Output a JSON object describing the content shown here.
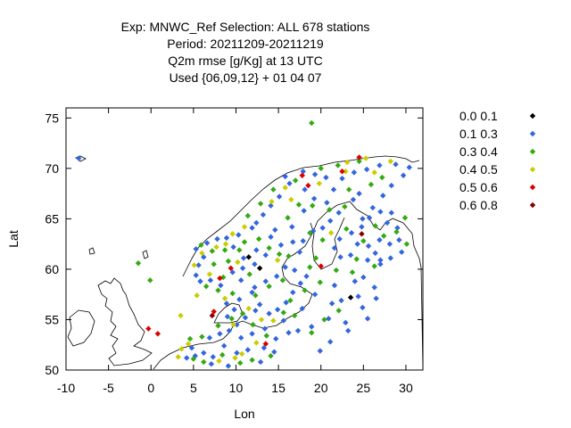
{
  "chart_data": {
    "type": "scatter",
    "title_lines": [
      "Exp: MNWC_Ref   Selection: ALL    678 stations",
      "Period: 20211209-20211219",
      "Q2m rmse [g/Kg] at  13 UTC",
      "Used {06,09,12} + 01 04 07"
    ],
    "xlabel": "Lon",
    "ylabel": "Lat",
    "xlim": [
      -10,
      32
    ],
    "ylim": [
      50,
      76
    ],
    "xticks": [
      -10,
      -5,
      0,
      5,
      10,
      15,
      20,
      25,
      30
    ],
    "yticks": [
      50,
      55,
      60,
      65,
      70,
      75
    ],
    "grid": false,
    "legend_position": "right",
    "series": [
      {
        "name": "0.0 0.1",
        "color": "#000000",
        "points": [
          [
            11.5,
            61.2
          ],
          [
            12.8,
            60.1
          ],
          [
            23.5,
            57.2
          ]
        ]
      },
      {
        "name": "0.1 0.3",
        "color": "#3366dd",
        "points": [
          [
            -8.5,
            71.0
          ],
          [
            24.0,
            58.8
          ],
          [
            27.0,
            60.5
          ],
          [
            25.5,
            60.9
          ],
          [
            25.0,
            59.2
          ],
          [
            26.3,
            58.2
          ],
          [
            24.4,
            57.3
          ],
          [
            22.4,
            56.9
          ],
          [
            21.3,
            56.6
          ],
          [
            22.9,
            54.7
          ],
          [
            20.9,
            55.1
          ],
          [
            18.9,
            54.3
          ],
          [
            17.3,
            53.9
          ],
          [
            16.2,
            53.7
          ],
          [
            14.7,
            53.1
          ],
          [
            13.3,
            52.2
          ],
          [
            11.4,
            52.0
          ],
          [
            12.9,
            50.8
          ],
          [
            10.1,
            51.7
          ],
          [
            8.6,
            52.4
          ],
          [
            7.3,
            51.3
          ],
          [
            6.2,
            51.7
          ],
          [
            5.2,
            51.4
          ],
          [
            4.2,
            51.2
          ],
          [
            4.8,
            52.2
          ],
          [
            6.9,
            53.2
          ],
          [
            8.1,
            53.6
          ],
          [
            9.2,
            53.9
          ],
          [
            10.1,
            54.5
          ],
          [
            9.0,
            55.3
          ],
          [
            9.8,
            56.0
          ],
          [
            8.9,
            56.6
          ],
          [
            10.4,
            57.0
          ],
          [
            11.9,
            57.7
          ],
          [
            12.8,
            56.5
          ],
          [
            13.9,
            55.6
          ],
          [
            14.9,
            56.0
          ],
          [
            15.9,
            56.7
          ],
          [
            16.7,
            57.7
          ],
          [
            17.6,
            58.6
          ],
          [
            18.3,
            59.3
          ],
          [
            16.9,
            59.9
          ],
          [
            15.8,
            60.2
          ],
          [
            14.8,
            59.3
          ],
          [
            13.5,
            58.8
          ],
          [
            12.2,
            58.2
          ],
          [
            10.6,
            58.9
          ],
          [
            9.6,
            59.7
          ],
          [
            8.2,
            58.4
          ],
          [
            7.0,
            58.9
          ],
          [
            5.8,
            58.8
          ],
          [
            5.3,
            59.4
          ],
          [
            5.6,
            60.4
          ],
          [
            6.2,
            61.2
          ],
          [
            5.3,
            62.0
          ],
          [
            6.6,
            62.6
          ],
          [
            7.8,
            63.0
          ],
          [
            8.9,
            63.1
          ],
          [
            10.3,
            63.4
          ],
          [
            9.7,
            62.2
          ],
          [
            10.9,
            61.1
          ],
          [
            12.4,
            61.9
          ],
          [
            14.1,
            63.2
          ],
          [
            15.3,
            62.4
          ],
          [
            16.7,
            62.7
          ],
          [
            17.5,
            61.7
          ],
          [
            17.9,
            62.8
          ],
          [
            19.1,
            63.8
          ],
          [
            20.2,
            64.1
          ],
          [
            21.1,
            64.8
          ],
          [
            22.1,
            65.6
          ],
          [
            20.7,
            66.6
          ],
          [
            19.2,
            67.0
          ],
          [
            18.1,
            67.9
          ],
          [
            16.3,
            68.5
          ],
          [
            15.1,
            67.2
          ],
          [
            14.1,
            66.3
          ],
          [
            13.2,
            65.4
          ],
          [
            12.4,
            64.6
          ],
          [
            11.9,
            64.1
          ],
          [
            15.8,
            69.2
          ],
          [
            17.9,
            69.7
          ],
          [
            19.3,
            69.4
          ],
          [
            20.6,
            69.1
          ],
          [
            22.5,
            69.0
          ],
          [
            23.9,
            69.6
          ],
          [
            25.4,
            69.9
          ],
          [
            26.9,
            70.3
          ],
          [
            28.8,
            70.4
          ],
          [
            30.4,
            70.1
          ],
          [
            29.7,
            69.3
          ],
          [
            28.3,
            68.3
          ],
          [
            27.3,
            67.3
          ],
          [
            26.1,
            66.1
          ],
          [
            25.7,
            65.1
          ],
          [
            24.8,
            64.2
          ],
          [
            23.6,
            63.6
          ],
          [
            22.2,
            63.0
          ],
          [
            21.6,
            62.1
          ],
          [
            22.3,
            61.2
          ],
          [
            23.5,
            61.4
          ],
          [
            24.3,
            62.5
          ],
          [
            25.6,
            62.3
          ],
          [
            26.9,
            62.9
          ],
          [
            28.1,
            62.5
          ],
          [
            29.2,
            62.9
          ],
          [
            29.5,
            61.7
          ],
          [
            28.2,
            61.1
          ],
          [
            27.0,
            60.9
          ],
          [
            26.4,
            61.6
          ],
          [
            29.0,
            64.1
          ],
          [
            27.8,
            64.6
          ],
          [
            28.3,
            65.6
          ],
          [
            27.0,
            65.7
          ],
          [
            24.9,
            65.0
          ],
          [
            23.8,
            66.9
          ],
          [
            24.5,
            67.5
          ],
          [
            21.5,
            67.9
          ],
          [
            18.0,
            65.8
          ],
          [
            16.6,
            64.2
          ],
          [
            14.6,
            63.9
          ],
          [
            13.5,
            61.4
          ],
          [
            12.2,
            60.5
          ],
          [
            10.8,
            60.1
          ],
          [
            11.1,
            55.2
          ],
          [
            12.3,
            55.9
          ],
          [
            10.6,
            53.2
          ],
          [
            11.9,
            53.6
          ],
          [
            13.4,
            54.1
          ],
          [
            15.6,
            54.9
          ],
          [
            17.8,
            56.1
          ],
          [
            19.3,
            57.5
          ],
          [
            21.6,
            58.4
          ],
          [
            24.9,
            56.2
          ],
          [
            26.5,
            57.1
          ],
          [
            25.5,
            55.1
          ],
          [
            23.2,
            53.9
          ],
          [
            21.1,
            52.8
          ],
          [
            19.9,
            51.9
          ],
          [
            14.5,
            51.8
          ],
          [
            9.1,
            50.4
          ],
          [
            7.1,
            50.6
          ]
        ]
      },
      {
        "name": "0.3 0.4",
        "color": "#33aa11",
        "points": [
          [
            18.9,
            74.5
          ],
          [
            -1.5,
            60.6
          ],
          [
            -0.1,
            58.9
          ],
          [
            5.0,
            51.1
          ],
          [
            4.6,
            53.1
          ],
          [
            6.0,
            53.3
          ],
          [
            7.9,
            54.4
          ],
          [
            9.5,
            55.1
          ],
          [
            10.8,
            55.6
          ],
          [
            12.0,
            54.5
          ],
          [
            13.6,
            53.4
          ],
          [
            14.1,
            51.4
          ],
          [
            11.9,
            51.0
          ],
          [
            10.5,
            50.7
          ],
          [
            15.6,
            55.7
          ],
          [
            16.4,
            56.9
          ],
          [
            18.1,
            57.9
          ],
          [
            19.9,
            58.7
          ],
          [
            21.8,
            59.9
          ],
          [
            23.7,
            59.7
          ],
          [
            22.1,
            55.9
          ],
          [
            20.4,
            55.0
          ],
          [
            18.9,
            53.7
          ],
          [
            9.6,
            57.6
          ],
          [
            7.9,
            57.9
          ],
          [
            6.5,
            58.3
          ],
          [
            8.5,
            59.2
          ],
          [
            7.4,
            60.5
          ],
          [
            9.1,
            60.8
          ],
          [
            8.7,
            61.9
          ],
          [
            11.0,
            62.7
          ],
          [
            12.7,
            63.0
          ],
          [
            13.9,
            62.1
          ],
          [
            15.1,
            61.5
          ],
          [
            16.2,
            61.3
          ],
          [
            18.7,
            60.2
          ],
          [
            19.4,
            61.1
          ],
          [
            20.2,
            62.9
          ],
          [
            18.7,
            63.6
          ],
          [
            16.1,
            65.1
          ],
          [
            17.4,
            66.4
          ],
          [
            19.0,
            66.3
          ],
          [
            21.0,
            65.9
          ],
          [
            22.8,
            66.2
          ],
          [
            23.3,
            67.9
          ],
          [
            25.9,
            68.4
          ],
          [
            27.2,
            69.1
          ],
          [
            24.5,
            70.7
          ],
          [
            22.0,
            70.3
          ],
          [
            20.0,
            70.0
          ],
          [
            17.0,
            68.8
          ],
          [
            14.4,
            67.9
          ],
          [
            12.9,
            66.5
          ],
          [
            11.4,
            65.3
          ],
          [
            26.4,
            64.3
          ],
          [
            27.4,
            63.3
          ],
          [
            28.9,
            63.7
          ],
          [
            30.1,
            62.5
          ],
          [
            26.3,
            60.3
          ],
          [
            25.0,
            62.8
          ],
          [
            23.0,
            64.0
          ],
          [
            13.9,
            58.3
          ],
          [
            15.5,
            58.9
          ],
          [
            12.3,
            57.4
          ],
          [
            16.9,
            55.4
          ],
          [
            8.4,
            51.5
          ],
          [
            6.2,
            50.8
          ],
          [
            7.2,
            61.8
          ],
          [
            10.4,
            61.9
          ],
          [
            11.6,
            59.5
          ],
          [
            5.9,
            62.4
          ],
          [
            24.2,
            61.0
          ],
          [
            29.9,
            65.1
          ]
        ]
      },
      {
        "name": "0.4 0.5",
        "color": "#cccc00",
        "points": [
          [
            3.2,
            51.3
          ],
          [
            3.6,
            52.1
          ],
          [
            4.4,
            52.6
          ],
          [
            3.5,
            55.4
          ],
          [
            5.4,
            57.4
          ],
          [
            6.9,
            59.5
          ],
          [
            5.1,
            60.4
          ],
          [
            6.0,
            61.6
          ],
          [
            7.7,
            62.2
          ],
          [
            8.8,
            62.5
          ],
          [
            9.6,
            63.5
          ],
          [
            11.0,
            64.2
          ],
          [
            10.2,
            60.7
          ],
          [
            8.7,
            57.1
          ],
          [
            11.5,
            56.1
          ],
          [
            13.0,
            55.0
          ],
          [
            12.4,
            52.7
          ],
          [
            9.9,
            51.2
          ],
          [
            8.0,
            50.9
          ],
          [
            14.4,
            54.9
          ],
          [
            16.5,
            66.9
          ],
          [
            19.8,
            68.5
          ],
          [
            22.9,
            69.7
          ],
          [
            26.3,
            69.6
          ],
          [
            28.2,
            70.7
          ],
          [
            25.3,
            71.0
          ],
          [
            23.1,
            70.6
          ],
          [
            14.2,
            66.7
          ],
          [
            15.8,
            68.1
          ],
          [
            21.2,
            63.6
          ],
          [
            14.9,
            60.9
          ],
          [
            9.7,
            54.5
          ],
          [
            10.7,
            51.6
          ]
        ]
      },
      {
        "name": "0.5 0.6",
        "color": "#dd0000",
        "points": [
          [
            -0.3,
            54.1
          ],
          [
            0.8,
            53.6
          ],
          [
            17.8,
            69.3
          ],
          [
            18.5,
            68.3
          ],
          [
            22.5,
            69.7
          ],
          [
            24.5,
            71.1
          ],
          [
            20.0,
            60.3
          ],
          [
            13.5,
            52.6
          ],
          [
            8.1,
            59.1
          ],
          [
            9.4,
            60.1
          ],
          [
            7.4,
            55.8
          ]
        ]
      },
      {
        "name": "0.6 0.8",
        "color": "#880000",
        "points": [
          [
            7.2,
            55.4
          ],
          [
            24.8,
            63.5
          ]
        ]
      }
    ]
  }
}
